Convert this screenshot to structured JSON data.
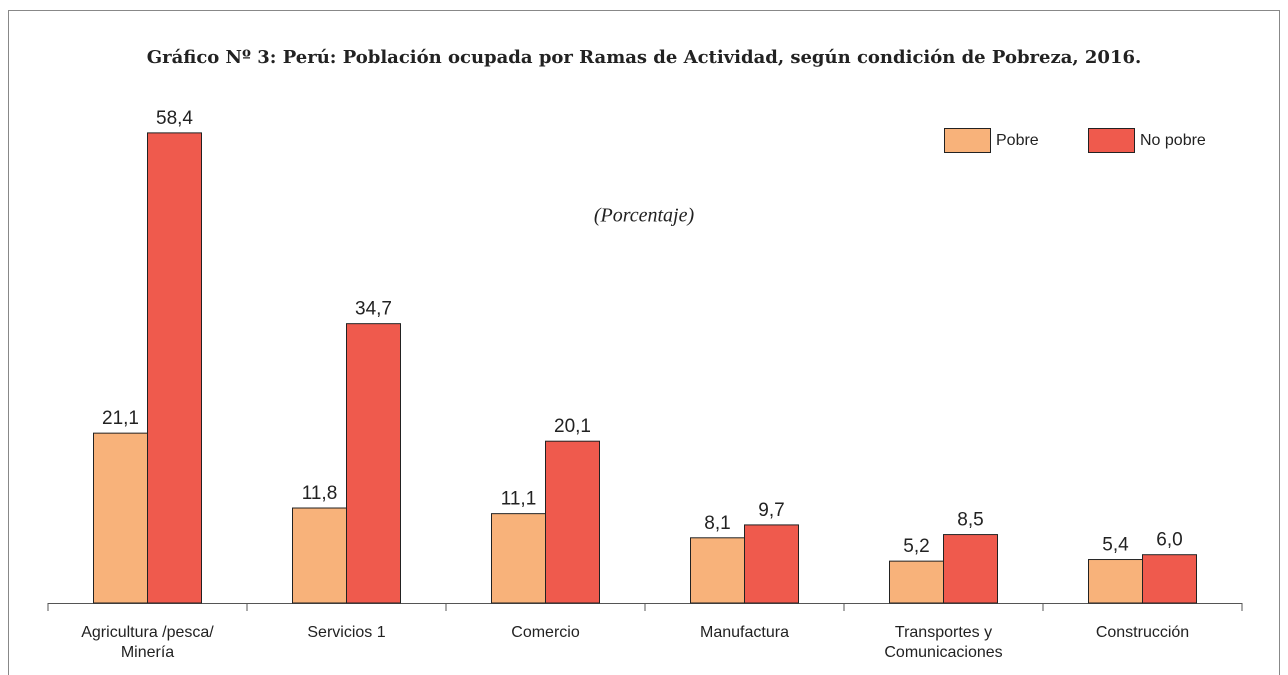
{
  "chart_data": {
    "type": "bar",
    "title": "Gráfico Nº 3: Perú: Población ocupada por Ramas de Actividad, según condición de Pobreza, 2016.",
    "subtitle": "(Porcentaje)",
    "categories": [
      "Agricultura /pesca/\nMinería",
      "Servicios 1",
      "Comercio",
      "Manufactura",
      "Transportes y\nComunicaciones",
      "Construcción"
    ],
    "series": [
      {
        "name": "Pobre",
        "color": "#f8b27a",
        "values": [
          21.1,
          11.8,
          11.1,
          8.1,
          5.2,
          5.4
        ],
        "value_labels": [
          "21,1",
          "11,8",
          "11,1",
          "8,1",
          "5,2",
          "5,4"
        ]
      },
      {
        "name": "No pobre",
        "color": "#ef5a4d",
        "values": [
          58.4,
          34.7,
          20.1,
          9.7,
          8.5,
          6.0
        ],
        "value_labels": [
          "58,4",
          "34,7",
          "20,1",
          "9,7",
          "8,5",
          "6,0"
        ]
      }
    ],
    "ylim": [
      0,
      60
    ],
    "legend": "top-right"
  }
}
